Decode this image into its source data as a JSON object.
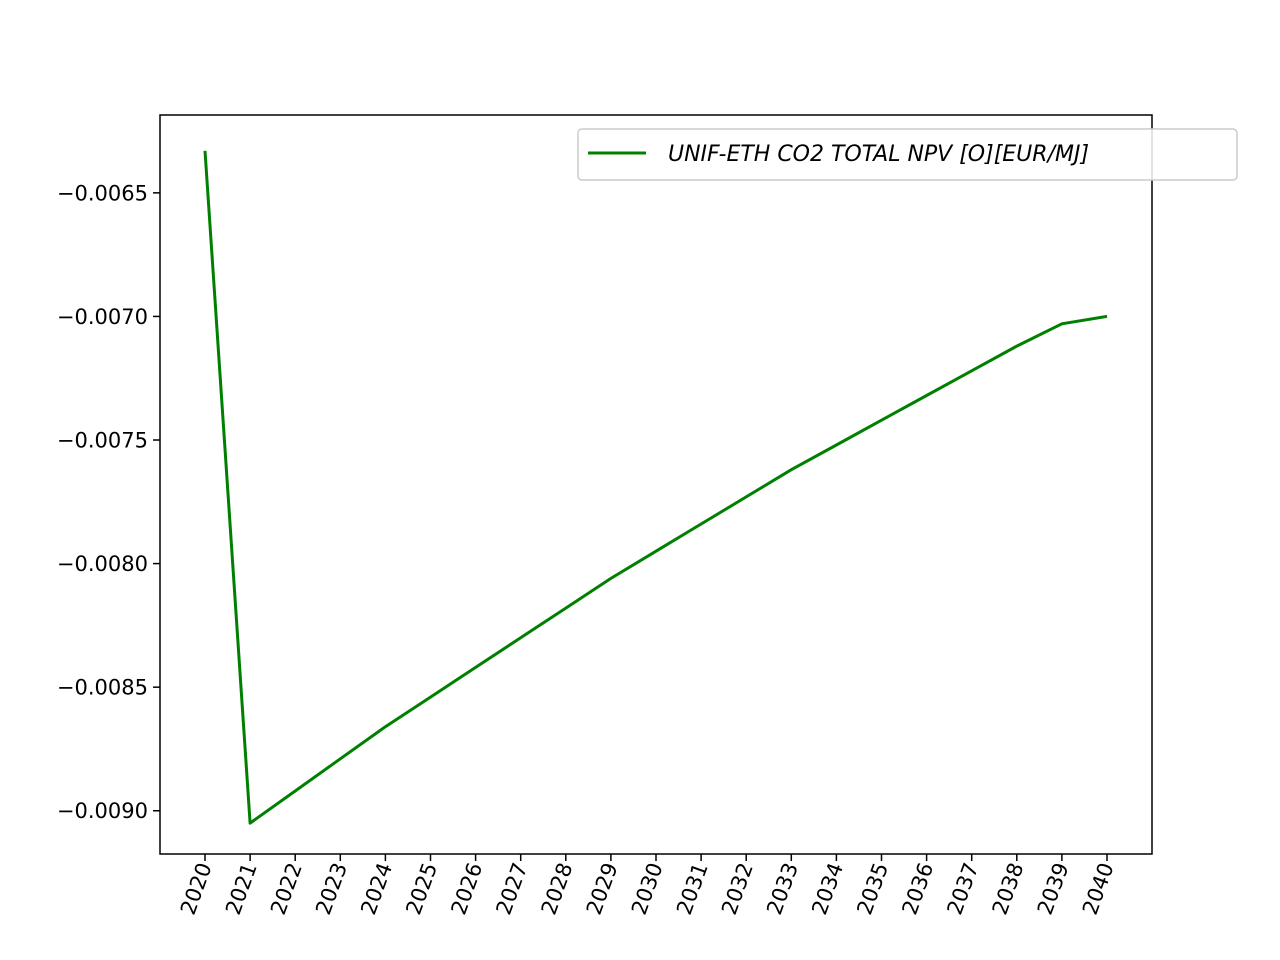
{
  "chart_data": {
    "type": "line",
    "title": "",
    "xlabel": "",
    "ylabel": "",
    "x": [
      "2020",
      "2021",
      "2022",
      "2023",
      "2024",
      "2025",
      "2026",
      "2027",
      "2028",
      "2029",
      "2030",
      "2031",
      "2032",
      "2033",
      "2034",
      "2035",
      "2036",
      "2037",
      "2038",
      "2039",
      "2040"
    ],
    "series": [
      {
        "name": "UNIF-ETH CO2 TOTAL NPV [O][EUR/MJ]",
        "color": "#008000",
        "values": [
          -0.00633,
          -0.00905,
          -0.00892,
          -0.00879,
          -0.00866,
          -0.00854,
          -0.00842,
          -0.0083,
          -0.00818,
          -0.00806,
          -0.00795,
          -0.00784,
          -0.00773,
          -0.00762,
          -0.00752,
          -0.00742,
          -0.00732,
          -0.00722,
          -0.00712,
          -0.00703,
          -0.007
        ]
      }
    ],
    "yticks": [
      -0.0065,
      -0.007,
      -0.0075,
      -0.008,
      -0.0085,
      -0.009
    ],
    "ytick_labels": [
      "−0.0065",
      "−0.0070",
      "−0.0075",
      "−0.0080",
      "−0.0085",
      "−0.0090"
    ],
    "ylim": [
      -0.009175,
      -0.006185
    ],
    "grid": false,
    "legend_position": "top-right"
  }
}
